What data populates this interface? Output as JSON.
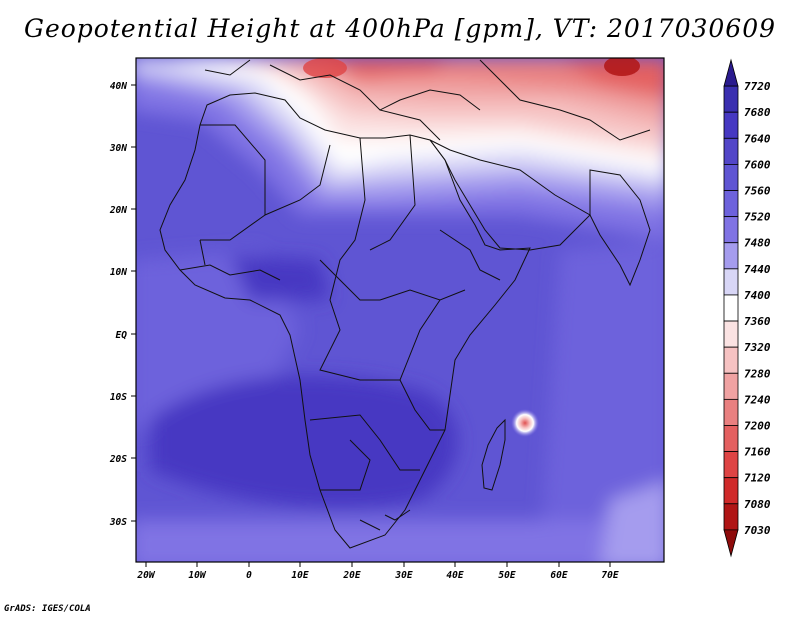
{
  "title": "Geopotential Height at 400hPa [gpm], VT: 2017030609",
  "footer": "GrADS: IGES/COLA",
  "map": {
    "lon_ticks": [
      "20W",
      "10W",
      "0",
      "10E",
      "20E",
      "30E",
      "40E",
      "50E",
      "60E",
      "70E"
    ],
    "lat_ticks": [
      "40N",
      "30N",
      "20N",
      "10N",
      "EQ",
      "10S",
      "20S",
      "30S"
    ]
  },
  "colorbar": {
    "levels": [
      "7720",
      "7680",
      "7640",
      "7600",
      "7560",
      "7520",
      "7480",
      "7440",
      "7400",
      "7360",
      "7320",
      "7280",
      "7240",
      "7200",
      "7160",
      "7120",
      "7080",
      "7030"
    ],
    "colors": [
      "#2a1b8e",
      "#3a2fb0",
      "#4638c2",
      "#5246c8",
      "#5f55d3",
      "#6d62dc",
      "#8073e4",
      "#a59cee",
      "#d8d6f6",
      "#ffffff",
      "#fbe3e3",
      "#f6c2c2",
      "#f0a2a2",
      "#e98080",
      "#e46060",
      "#de4444",
      "#d02a2a",
      "#b01515",
      "#8e0b0b"
    ]
  }
}
